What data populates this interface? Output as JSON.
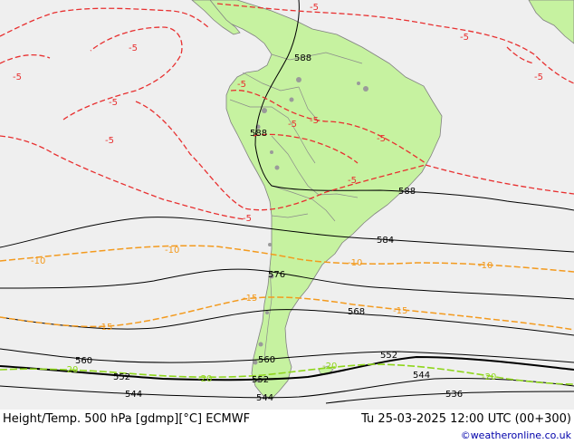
{
  "title": "Height/Temp. 500 hPa [gdmp][°C] ECMWF",
  "valid_time": "Tu 25-03-2025 12:00 UTC (00+300)",
  "credit": "©weatheronline.co.uk",
  "colors": {
    "sea": "#efefef",
    "land": "#c6f2a0",
    "land_border": "#7a7a7a",
    "height_line": "#000000",
    "temp_minus5": "#e83030",
    "temp_minus10_minus15": "#f39a1e",
    "temp_minus20": "#8fd61c"
  },
  "height_labels": [
    "588",
    "588",
    "588",
    "584",
    "576",
    "568",
    "560",
    "560",
    "552",
    "552",
    "552",
    "544",
    "544",
    "544",
    "536"
  ],
  "temp_labels": [
    "-5",
    "-5",
    "-5",
    "-5",
    "-5",
    "-5",
    "-5",
    "-5",
    "-5",
    "-5",
    "-5",
    "-5",
    "-5",
    "-10",
    "-10",
    "-10",
    "-10",
    "-15",
    "-15",
    "-15",
    "-20",
    "-20",
    "-20",
    "-20"
  ]
}
